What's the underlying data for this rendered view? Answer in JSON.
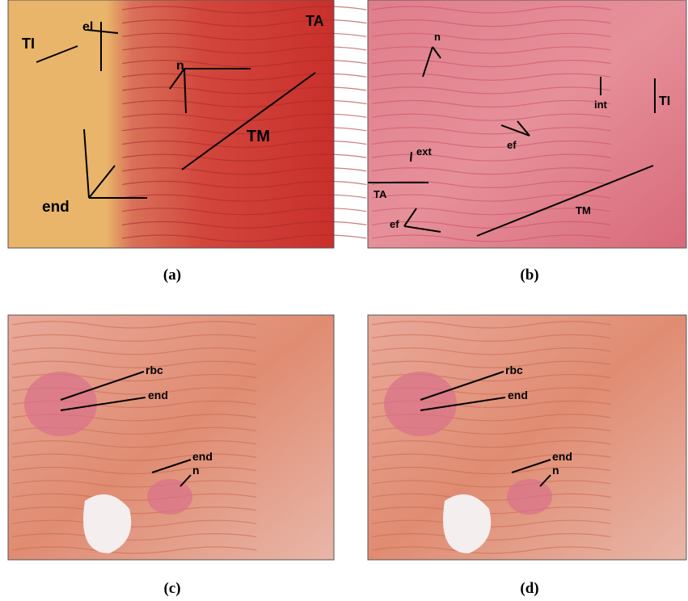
{
  "panels": [
    {
      "caption": "(a)",
      "labels": [
        "TI",
        "el",
        "TA",
        "n",
        "TM",
        "end"
      ]
    },
    {
      "caption": "(b)",
      "labels": [
        "n",
        "int",
        "TI",
        "ef",
        "ext",
        "TA",
        "TM",
        "ef"
      ]
    },
    {
      "caption": "(c)",
      "labels": [
        "rbc",
        "end",
        "end",
        "n"
      ]
    },
    {
      "caption": "(d)",
      "labels": [
        "rbc",
        "end",
        "end",
        "n"
      ]
    }
  ]
}
